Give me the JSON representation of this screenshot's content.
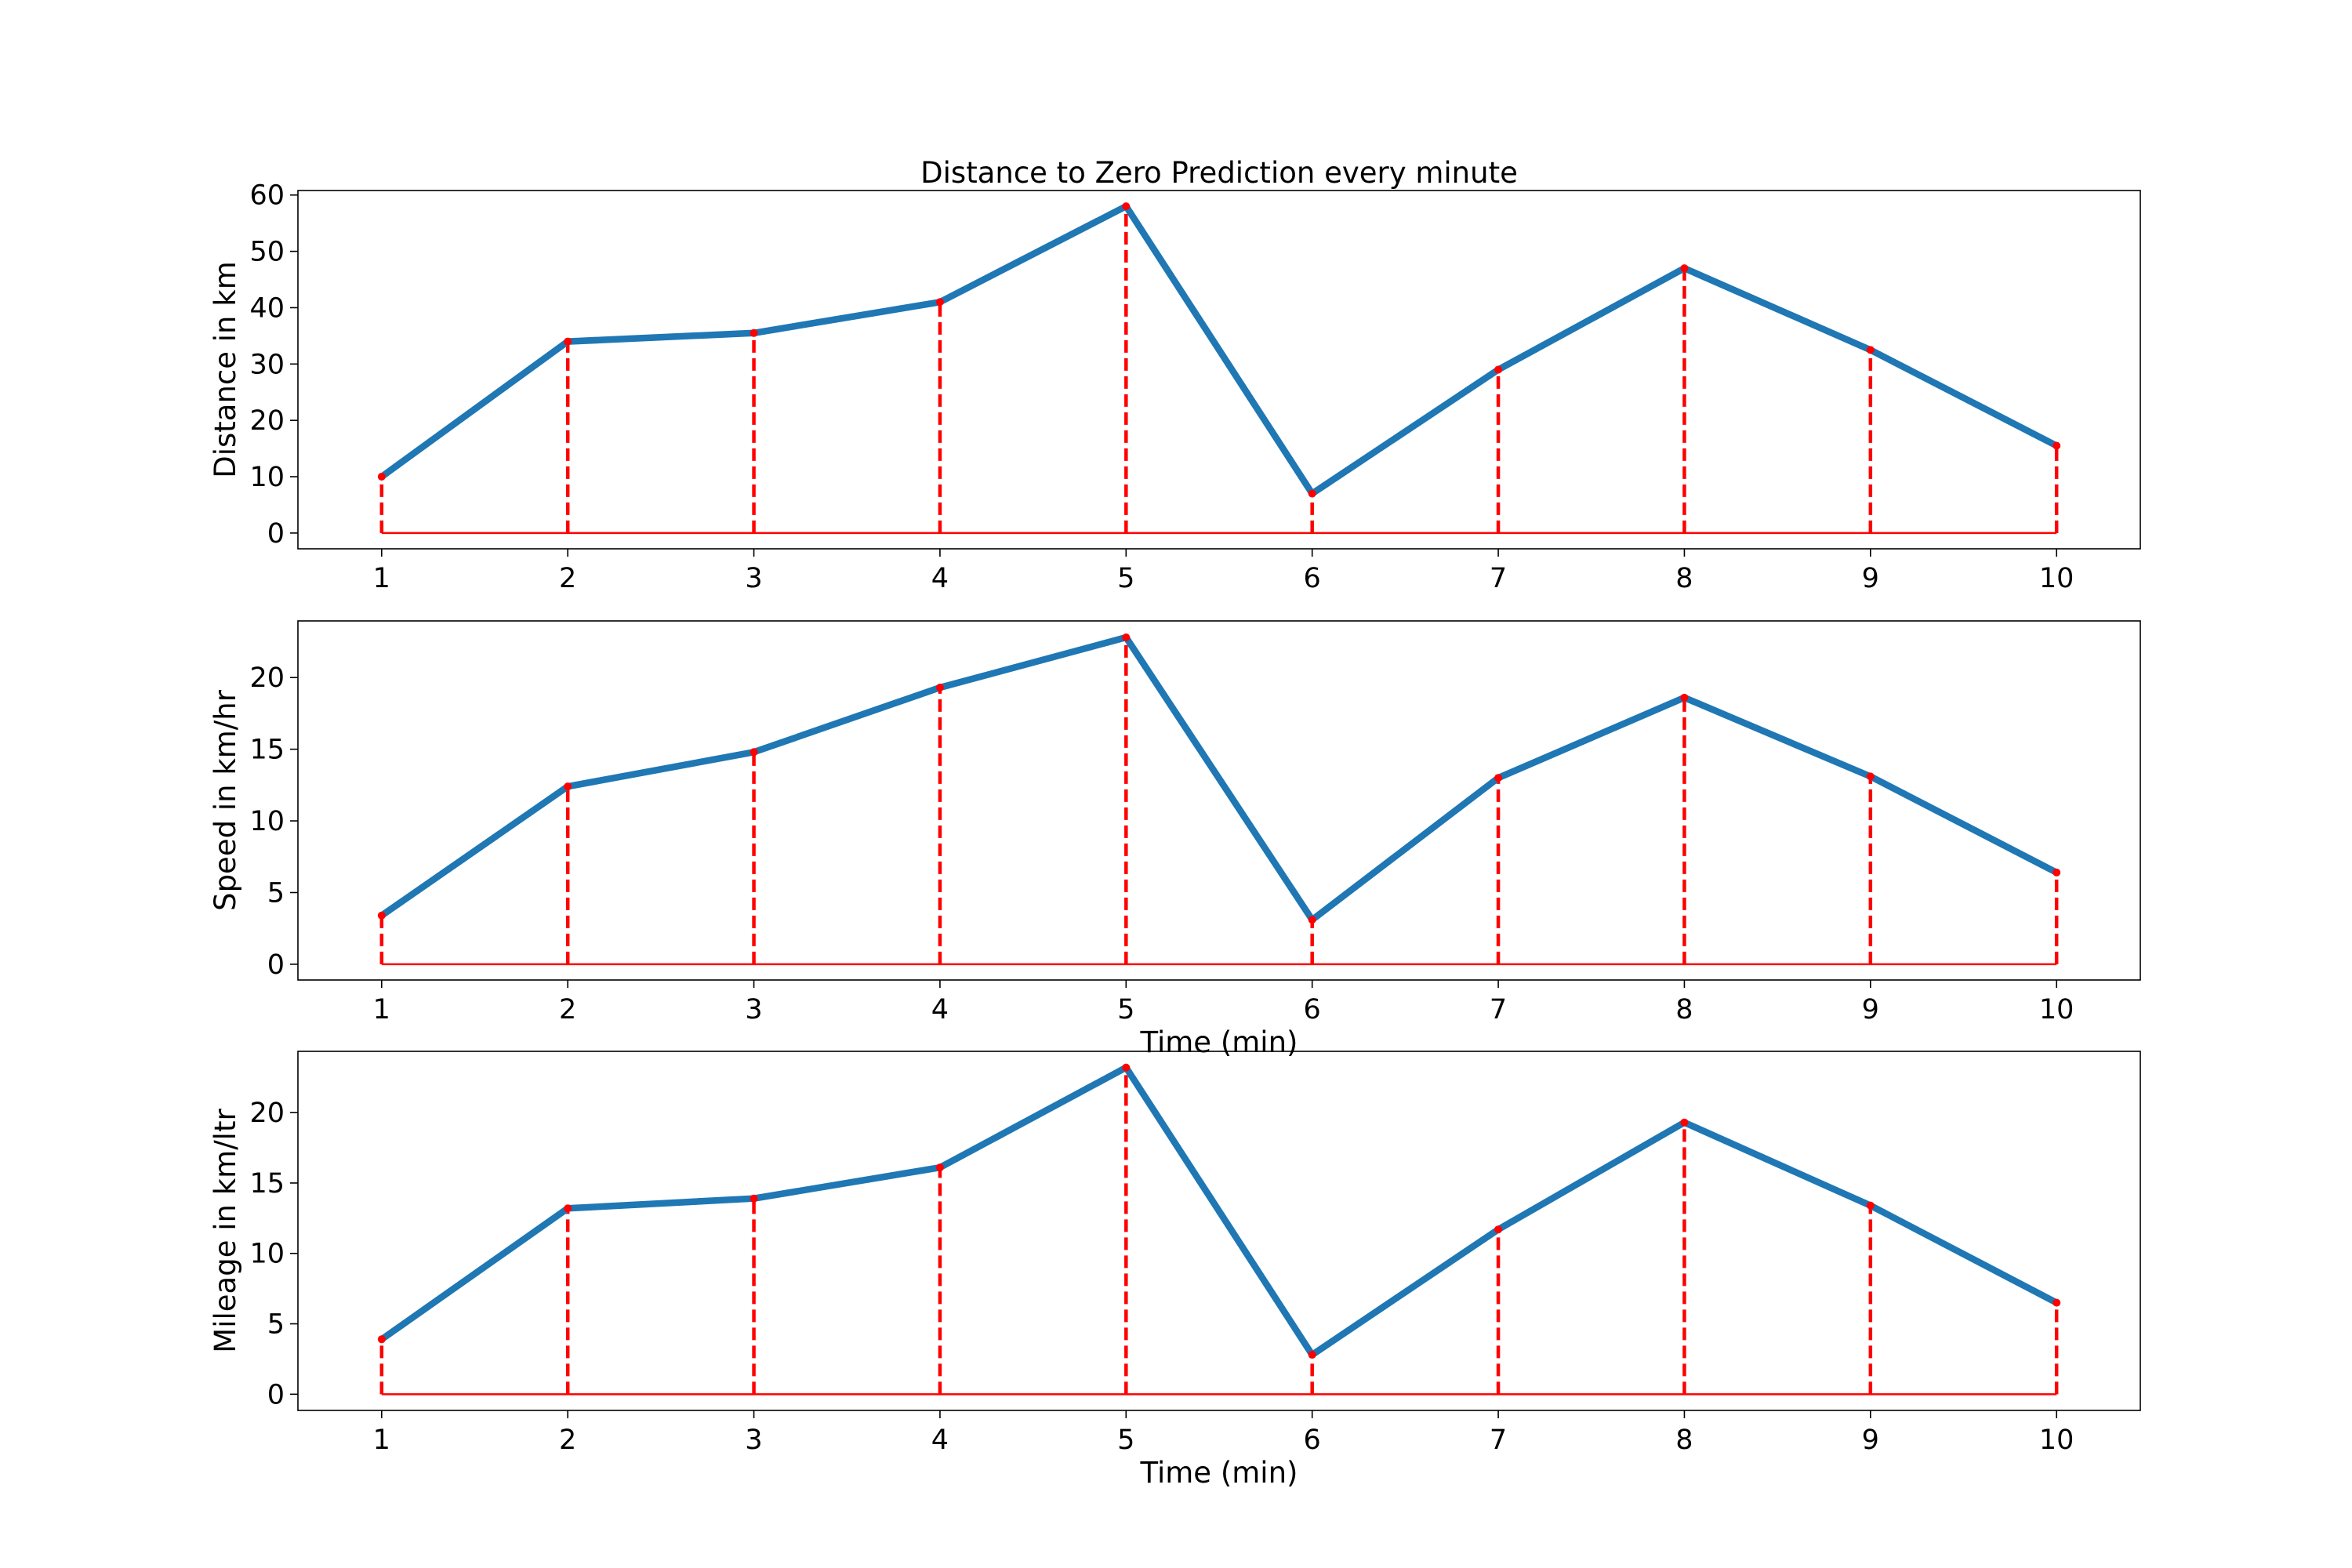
{
  "colors": {
    "line": "#1f77b4",
    "stem": "#ff0000",
    "axes": "#000000"
  },
  "chart_data": [
    {
      "type": "line",
      "title": "Distance to Zero Prediction every minute",
      "xlabel": "",
      "ylabel": "Distance in km",
      "x": [
        1,
        2,
        3,
        4,
        5,
        6,
        7,
        8,
        9,
        10
      ],
      "x_ticks": [
        "1",
        "2",
        "3",
        "4",
        "5",
        "6",
        "7",
        "8",
        "9",
        "10"
      ],
      "y": [
        10,
        34,
        35.5,
        41,
        58,
        7,
        29,
        47,
        32.5,
        15.5
      ],
      "ylim": [
        -2.8,
        60.8
      ],
      "y_ticks": [
        "0",
        "10",
        "20",
        "30",
        "40",
        "50",
        "60"
      ],
      "stems": true,
      "grid": false
    },
    {
      "type": "line",
      "title": "",
      "xlabel": "Time (min)",
      "ylabel": "Speed in km/hr",
      "x": [
        1,
        2,
        3,
        4,
        5,
        6,
        7,
        8,
        9,
        10
      ],
      "x_ticks": [
        "1",
        "2",
        "3",
        "4",
        "5",
        "6",
        "7",
        "8",
        "9",
        "10"
      ],
      "y": [
        3.4,
        12.4,
        14.8,
        19.3,
        22.8,
        3.1,
        13,
        18.6,
        13.1,
        6.4
      ],
      "ylim": [
        -1.1,
        23.95
      ],
      "y_ticks": [
        "0",
        "5",
        "10",
        "15",
        "20"
      ],
      "stems": true,
      "grid": false
    },
    {
      "type": "line",
      "title": "",
      "xlabel": "Time (min)",
      "ylabel": "Mileage in km/ltr",
      "x": [
        1,
        2,
        3,
        4,
        5,
        6,
        7,
        8,
        9,
        10
      ],
      "x_ticks": [
        "1",
        "2",
        "3",
        "4",
        "5",
        "6",
        "7",
        "8",
        "9",
        "10"
      ],
      "y": [
        3.9,
        13.2,
        13.9,
        16.1,
        23.2,
        2.8,
        11.7,
        19.3,
        13.4,
        6.5
      ],
      "ylim": [
        -1.15,
        24.35
      ],
      "y_ticks": [
        "0",
        "5",
        "10",
        "15",
        "20"
      ],
      "stems": true,
      "grid": false
    }
  ]
}
